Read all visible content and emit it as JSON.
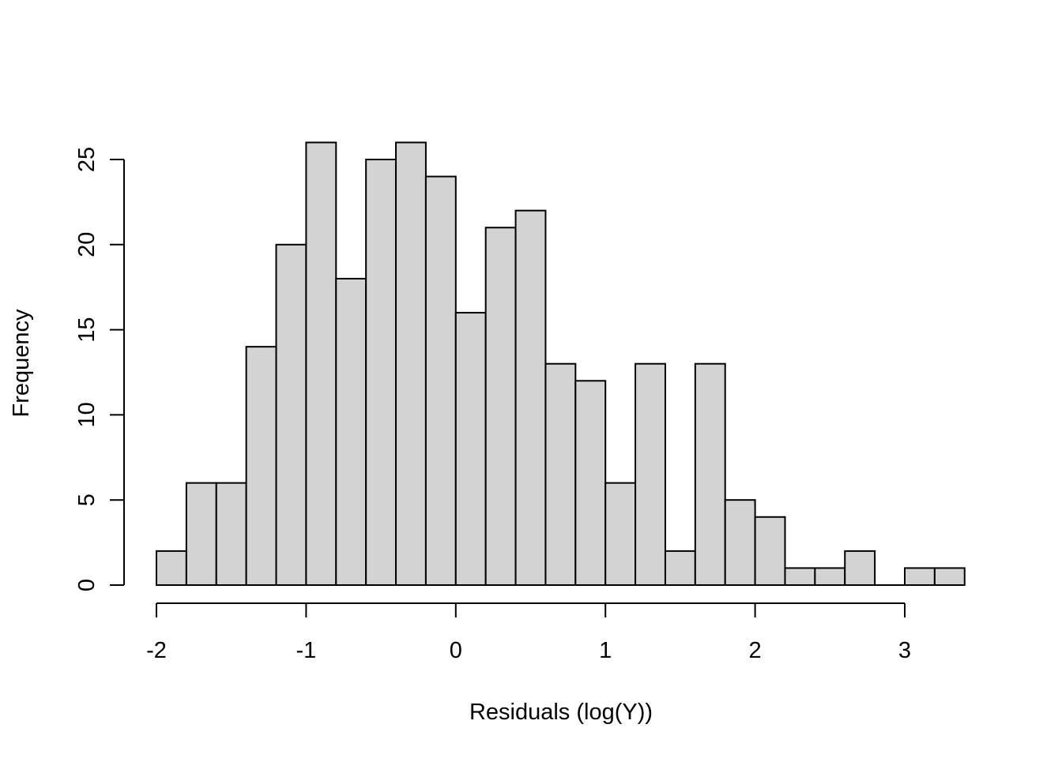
{
  "chart_data": {
    "type": "bar",
    "subtype": "histogram",
    "title": "",
    "xlabel": "Residuals (log(Y))",
    "ylabel": "Frequency",
    "bin_edges": [
      -2.0,
      -1.8,
      -1.6,
      -1.4,
      -1.2,
      -1.0,
      -0.8,
      -0.6,
      -0.4,
      -0.2,
      0.0,
      0.2,
      0.4,
      0.6,
      0.8,
      1.0,
      1.2,
      1.4,
      1.6,
      1.8,
      2.0,
      2.2,
      2.4,
      2.6,
      2.8,
      3.0,
      3.2,
      3.4
    ],
    "values": [
      2,
      6,
      6,
      14,
      20,
      26,
      18,
      25,
      26,
      24,
      16,
      21,
      22,
      13,
      12,
      6,
      13,
      2,
      13,
      5,
      4,
      1,
      1,
      2,
      0,
      1,
      1
    ],
    "xlim": [
      -2,
      3.4
    ],
    "ylim": [
      0,
      26
    ],
    "xticks": [
      -2,
      -1,
      0,
      1,
      2,
      3
    ],
    "xtick_labels": [
      "-2",
      "-1",
      "0",
      "1",
      "2",
      "3"
    ],
    "yticks": [
      0,
      5,
      10,
      15,
      20,
      25
    ],
    "ytick_labels": [
      "0",
      "5",
      "10",
      "15",
      "20",
      "25"
    ],
    "bar_color": "#d3d3d3",
    "edge_color": "#000000",
    "grid": false
  }
}
